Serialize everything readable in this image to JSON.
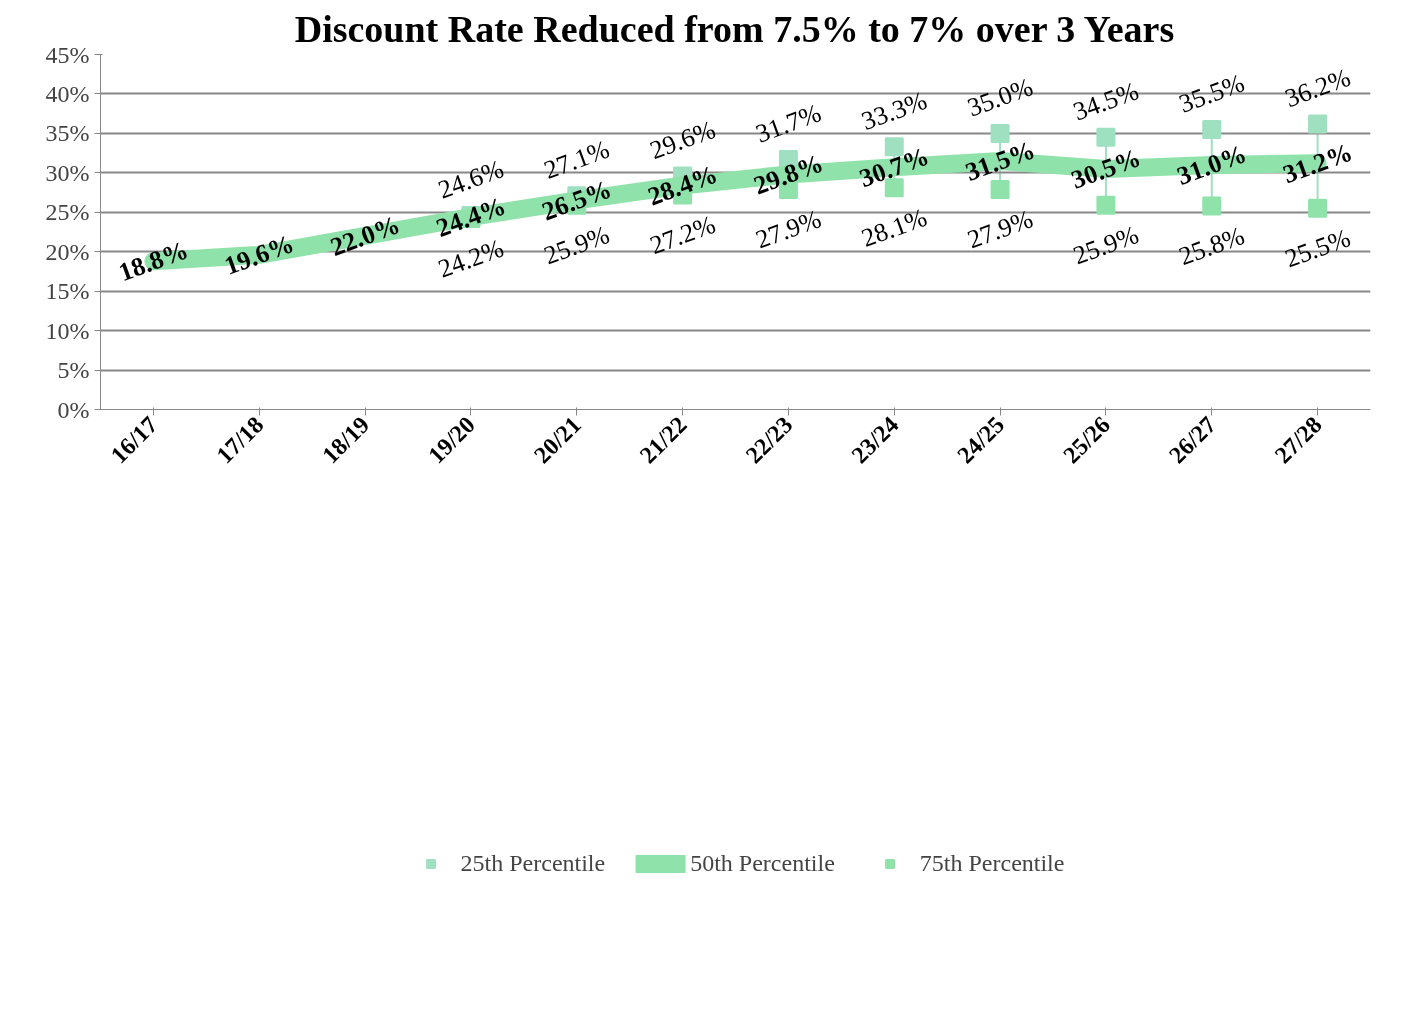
{
  "chart_data": {
    "type": "line",
    "title": "Discount Rate Reduced from 7.5% to 7% over 3 Years",
    "categories": [
      "16/17",
      "17/18",
      "18/19",
      "19/20",
      "20/21",
      "21/22",
      "22/23",
      "23/24",
      "24/25",
      "25/26",
      "26/27",
      "27/28"
    ],
    "series": [
      {
        "name": "25th Percentile",
        "type": "scatter",
        "marker": "square",
        "color": "#9fe0c0",
        "values": [
          null,
          null,
          null,
          24.6,
          27.1,
          29.6,
          31.7,
          33.3,
          35.0,
          34.5,
          35.5,
          36.2
        ],
        "value_labels": [
          null,
          null,
          null,
          "24.6%",
          "27.1%",
          "29.6%",
          "31.7%",
          "33.3%",
          "35.0%",
          "34.5%",
          "35.5%",
          "36.2%"
        ]
      },
      {
        "name": "50th Percentile",
        "color": "#8fe3aa",
        "values": [
          18.8,
          19.6,
          22.0,
          24.4,
          26.5,
          28.4,
          29.8,
          30.7,
          31.5,
          30.5,
          31.0,
          31.2
        ],
        "value_labels": [
          "18.8%",
          "19.6%",
          "22.0%",
          "24.4%",
          "26.5%",
          "28.4%",
          "29.8%",
          "30.7%",
          "31.5%",
          "30.5%",
          "31.0%",
          "31.2%"
        ]
      },
      {
        "name": "75th Percentile",
        "type": "scatter",
        "marker": "square",
        "color": "#8fe3aa",
        "values": [
          null,
          null,
          null,
          24.2,
          25.9,
          27.2,
          27.9,
          28.1,
          27.9,
          25.9,
          25.8,
          25.5
        ],
        "value_labels": [
          null,
          null,
          null,
          "24.2%",
          "25.9%",
          "27.2%",
          "27.9%",
          "28.1%",
          "27.9%",
          "25.9%",
          "25.8%",
          "25.5%"
        ]
      }
    ],
    "ylim": [
      0,
      45
    ],
    "yticks": [
      {
        "value": 0,
        "label": "0%"
      },
      {
        "value": 5,
        "label": "5%"
      },
      {
        "value": 10,
        "label": "10%"
      },
      {
        "value": 15,
        "label": "15%"
      },
      {
        "value": 20,
        "label": "20%"
      },
      {
        "value": 25,
        "label": "25%"
      },
      {
        "value": 30,
        "label": "30%"
      },
      {
        "value": 35,
        "label": "35%"
      },
      {
        "value": 40,
        "label": "40%"
      },
      {
        "value": 45,
        "label": "45%"
      }
    ],
    "grid": "y",
    "legend": "bottom"
  }
}
